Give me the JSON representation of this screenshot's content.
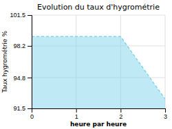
{
  "chart_data": {
    "type": "area",
    "title": "Evolution du taux d'hygrométrie",
    "xlabel": "heure par heure",
    "ylabel": "Taux hygrométrie %",
    "x": [
      0,
      2,
      3
    ],
    "values": [
      99.2,
      99.2,
      92.5
    ],
    "xlim": [
      0,
      3
    ],
    "ylim": [
      91.5,
      101.5
    ],
    "xticks": [
      0,
      1,
      2,
      3
    ],
    "yticks": [
      91.5,
      94.8,
      98.2,
      101.5
    ],
    "color": "#7fd4ea",
    "line_style": "dashed",
    "grid": true
  }
}
